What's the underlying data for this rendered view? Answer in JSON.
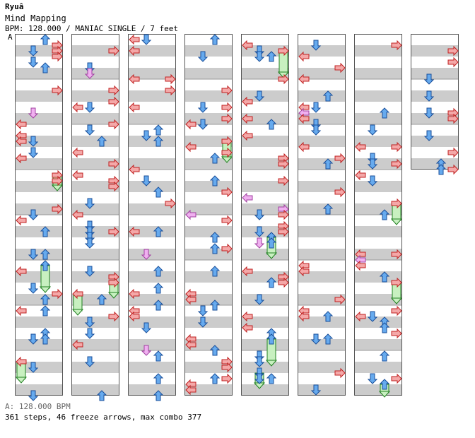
{
  "header": {
    "artist": "Ryuâ",
    "title": "Mind Mapping",
    "meta": "BPM: 128.000 / MANIAC SINGLE / 7 feet",
    "section_marker": "A"
  },
  "footer": {
    "bpm_line": "A: 128.000 BPM",
    "stats_line": "361 steps, 46 freeze arrows, max combo 377"
  },
  "colors": {
    "stripe": "#cccccc",
    "column_border": "#555555",
    "left_right_arrow": "#f4a8a8",
    "left_right_stroke": "#c02020",
    "up_down_arrow": "#66aaee",
    "up_down_stroke": "#1a4f9a",
    "shock_arrow": "#f0b0f0",
    "shock_stroke": "#a040a0",
    "freeze_fill": "#c8f0c0",
    "freeze_stroke": "#208020"
  },
  "icons": [
    "left-arrow-icon",
    "down-arrow-icon",
    "up-arrow-icon",
    "right-arrow-icon",
    "freeze-arrow-icon",
    "shock-arrow-icon"
  ],
  "chart_data": {
    "type": "step-chart",
    "mode": "MANIAC SINGLE",
    "bpm": 128.0,
    "difficulty_feet": 7,
    "steps": 361,
    "freeze_arrows": 46,
    "max_combo": 377,
    "lanes": [
      "left",
      "down",
      "up",
      "right"
    ],
    "columns": 8,
    "measures_per_column": 8,
    "measures_filled_last_column": 3
  }
}
